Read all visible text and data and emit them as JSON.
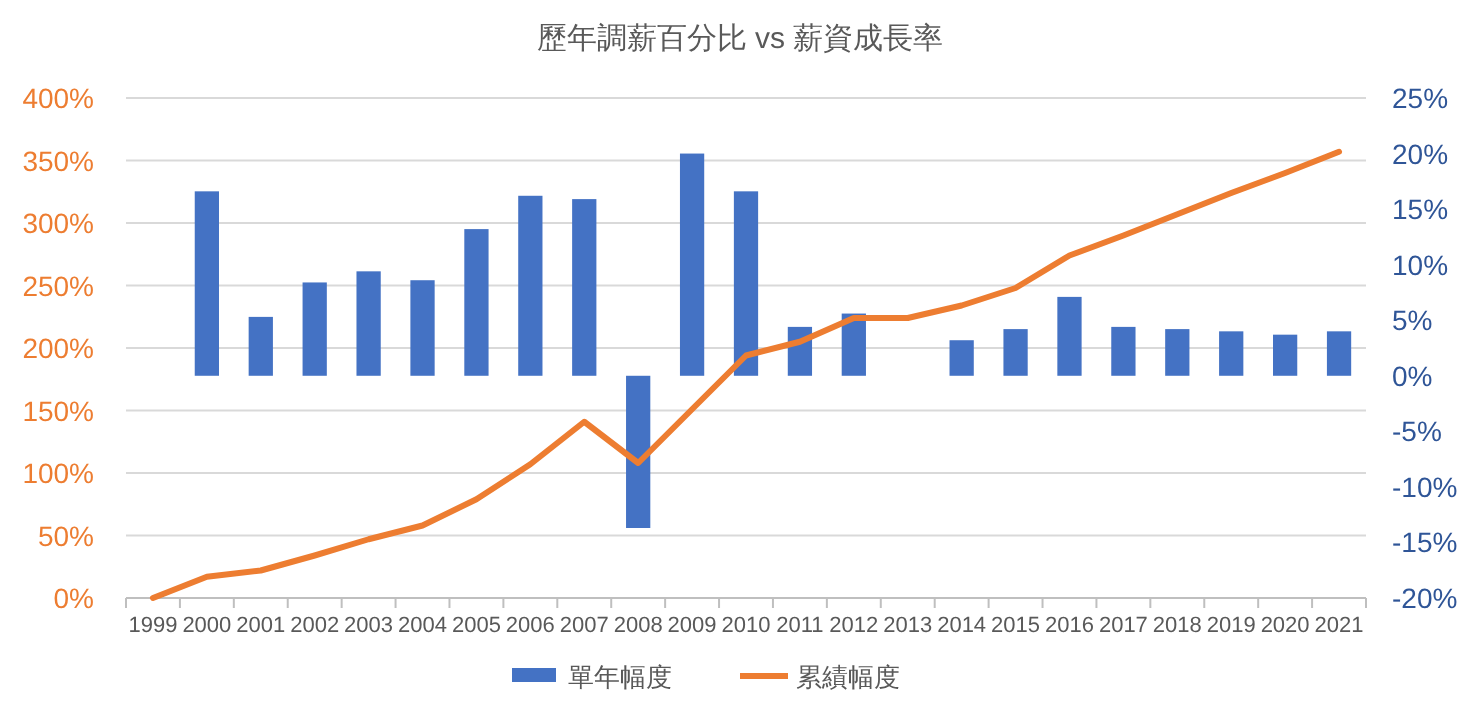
{
  "chart_data": {
    "type": "bar",
    "title": "歷年調薪百分比 vs 薪資成長率",
    "categories": [
      "1999",
      "2000",
      "2001",
      "2002",
      "2003",
      "2004",
      "2005",
      "2006",
      "2007",
      "2008",
      "2009",
      "2010",
      "2011",
      "2012",
      "2013",
      "2014",
      "2015",
      "2016",
      "2017",
      "2018",
      "2019",
      "2020",
      "2021"
    ],
    "series": [
      {
        "name": "單年幅度",
        "axis": "y2",
        "color": "#4472c4",
        "values": [
          null,
          16.6,
          5.3,
          8.4,
          9.4,
          8.6,
          13.2,
          16.2,
          15.9,
          -13.7,
          20.0,
          16.6,
          4.4,
          5.6,
          0,
          3.2,
          4.2,
          7.1,
          4.4,
          4.2,
          4.0,
          3.7,
          4.0
        ]
      },
      {
        "name": "累績幅度",
        "type": "line",
        "axis": "y",
        "color": "#ed7d31",
        "values": [
          0,
          17,
          22,
          34,
          47,
          58,
          79,
          107,
          141,
          108,
          151,
          194,
          205,
          224,
          224,
          234,
          248,
          274,
          290,
          307,
          324,
          340,
          357
        ]
      }
    ],
    "ylim": [
      0,
      400
    ],
    "yticks": [
      {
        "value": 0,
        "label": "0%"
      },
      {
        "value": 50,
        "label": "50%"
      },
      {
        "value": 100,
        "label": "100%"
      },
      {
        "value": 150,
        "label": "150%"
      },
      {
        "value": 200,
        "label": "200%"
      },
      {
        "value": 250,
        "label": "250%"
      },
      {
        "value": 300,
        "label": "300%"
      },
      {
        "value": 350,
        "label": "350%"
      },
      {
        "value": 400,
        "label": "400%"
      }
    ],
    "y2lim": [
      -20,
      25
    ],
    "y2ticks": [
      {
        "value": -20,
        "label": "-20%"
      },
      {
        "value": -15,
        "label": "-15%"
      },
      {
        "value": -10,
        "label": "-10%"
      },
      {
        "value": -5,
        "label": "-5%"
      },
      {
        "value": 0,
        "label": "0%"
      },
      {
        "value": 5,
        "label": "5%"
      },
      {
        "value": 10,
        "label": "10%"
      },
      {
        "value": 15,
        "label": "15%"
      },
      {
        "value": 20,
        "label": "20%"
      },
      {
        "value": 25,
        "label": "25%"
      }
    ],
    "grid": "y",
    "legend": "bottom",
    "marker": "none",
    "line_style": "solid"
  }
}
